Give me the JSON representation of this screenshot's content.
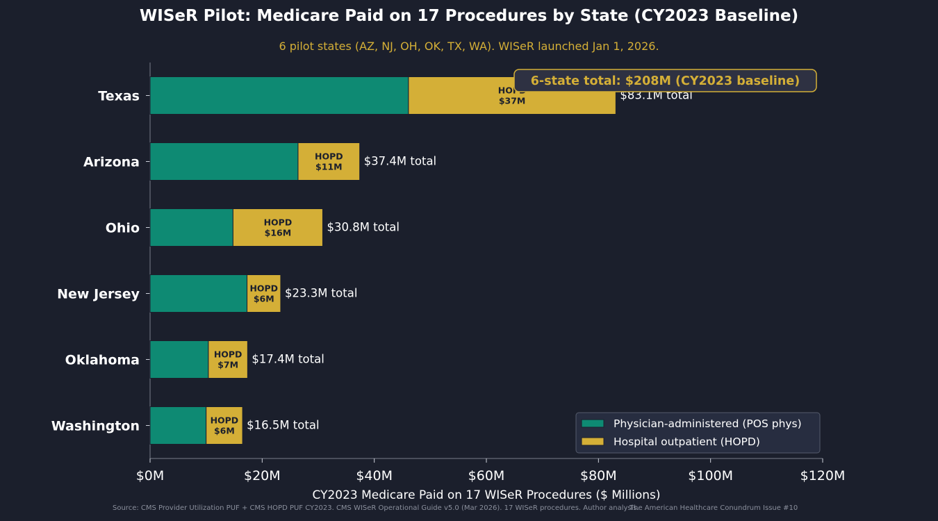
{
  "title": "WISeR Pilot: Medicare Paid on 17 Procedures by State (CY2023 Baseline)",
  "subtitle": "6 pilot states (AZ, NJ, OH, OK, TX, WA). WISeR launched Jan 1, 2026.",
  "annotation": "6-state total: $208M  (CY2023 baseline)",
  "footer": {
    "source": "Source: CMS Provider Utilization PUF + CMS HOPD PUF CY2023. CMS WISeR Operational Guide v5.0 (Mar 2026). 17 WISeR procedures. Author analysis.",
    "credit": "The American Healthcare Conundrum  Issue #10"
  },
  "colors": {
    "background": "#1b1f2c",
    "physician": "#0e8a73",
    "hopd": "#d4af37",
    "text": "#ffffff",
    "accent": "#d4af37"
  },
  "chart_data": {
    "type": "bar",
    "orientation": "horizontal",
    "stacked": true,
    "categories": [
      "Texas",
      "Arizona",
      "Ohio",
      "New Jersey",
      "Oklahoma",
      "Washington"
    ],
    "series": [
      {
        "name": "Physician-administered (POS phys)",
        "values": [
          46.1,
          26.4,
          14.8,
          17.3,
          10.4,
          10.0
        ]
      },
      {
        "name": "Hospital outpatient (HOPD)",
        "values": [
          37.0,
          11.0,
          16.0,
          6.0,
          7.0,
          6.5
        ]
      }
    ],
    "segment_labels": [
      "HOPD\n$37M",
      "HOPD\n$11M",
      "HOPD\n$16M",
      "HOPD\n$6M",
      "HOPD\n$7M",
      "HOPD\n$6M"
    ],
    "total_labels": [
      "$83.1M total",
      "$37.4M total",
      "$30.8M total",
      "$23.3M total",
      "$17.4M total",
      "$16.5M total"
    ],
    "xlabel": "CY2023 Medicare Paid on 17 WISeR Procedures ($ Millions)",
    "ylabel": "",
    "xlim": [
      0,
      120
    ],
    "xticks": [
      0,
      20,
      40,
      60,
      80,
      100,
      120
    ],
    "xtick_labels": [
      "$0M",
      "$20M",
      "$40M",
      "$60M",
      "$80M",
      "$100M",
      "$120M"
    ],
    "grid": false,
    "legend_position": "bottom-right"
  }
}
